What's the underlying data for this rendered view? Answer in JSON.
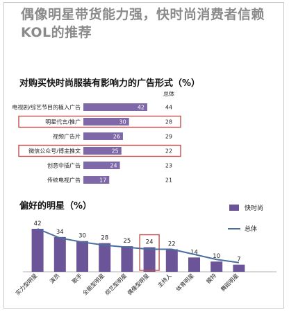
{
  "headline": {
    "line1": "偶像明星带货能力强，快时尚消费者信赖",
    "line2": "KOL的推荐"
  },
  "colors": {
    "bar": "#7e68a8",
    "bar_dark": "#6b5497",
    "line": "#4a6f9e",
    "highlight": "#c0504d",
    "headline": "#8a8a8a"
  },
  "chart_data": [
    {
      "type": "bar",
      "orientation": "horizontal",
      "title": "对购买快时尚服装有影响力的广告形式（%）",
      "column_header": "总体",
      "categories": [
        "电视剧/综艺节目的植入广告",
        "明星代言/推广",
        "视频广告片",
        "微信公众号/博主推文",
        "创意中插广告",
        "传统电视广告"
      ],
      "series": [
        {
          "name": "快时尚",
          "values": [
            42,
            30,
            26,
            25,
            24,
            17
          ]
        },
        {
          "name": "总体",
          "values": [
            44,
            28,
            29,
            22,
            23,
            21
          ]
        }
      ],
      "highlighted": [
        "明星代言/推广",
        "微信公众号/博主推文"
      ],
      "xlim": [
        0,
        45
      ]
    },
    {
      "type": "bar+line",
      "title": "偏好的明星（%）",
      "categories": [
        "实力型明星",
        "演员",
        "歌手",
        "全能型明星",
        "综艺型明星",
        "偶像型明星",
        "主持人",
        "体育明星",
        "模特",
        "舞蹈明星"
      ],
      "series": [
        {
          "name": "快时尚",
          "type": "bar",
          "values": [
            42,
            34,
            30,
            28,
            25,
            24,
            22,
            14,
            10,
            7
          ]
        },
        {
          "name": "总体",
          "type": "line",
          "values": [
            42,
            33,
            29,
            26,
            24,
            22,
            22,
            17,
            12,
            9
          ]
        }
      ],
      "highlighted": [
        "偶像型明星"
      ],
      "legend_position": "top-right",
      "ylim": [
        0,
        50
      ]
    }
  ]
}
